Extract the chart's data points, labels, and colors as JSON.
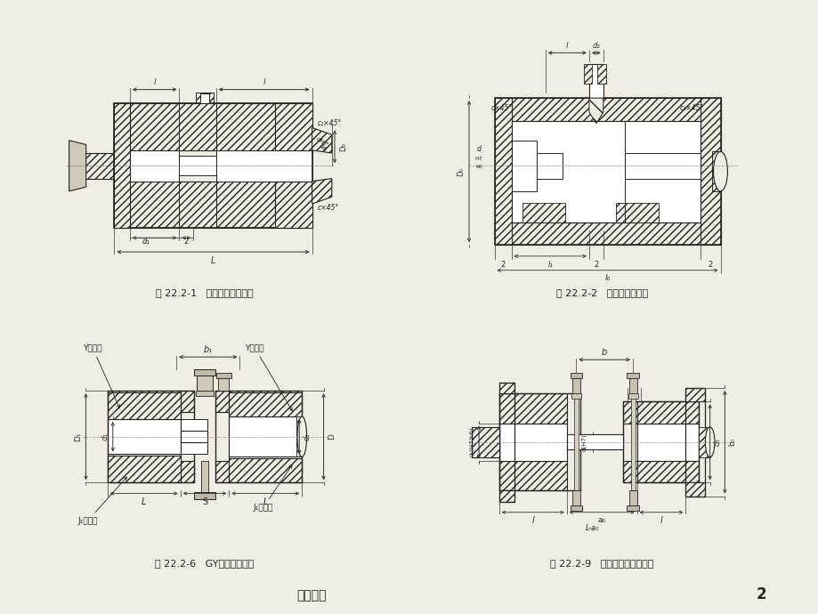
{
  "bg_color": "#f2ede4",
  "page_title_left": "沐风书苑",
  "page_number": "2",
  "fig_captions": [
    "图 22.2-1   圆锥销套筒联轴器",
    "图 22.2-2   平键套筒联轴器",
    "图 22.2-6   GY型凸缘联轴器",
    "图 22.2-9   带防护缘凸缘联轴器"
  ],
  "hatch_color": "#555555",
  "line_color": "#222222",
  "text_color": "#222222",
  "dim_color": "#333333"
}
